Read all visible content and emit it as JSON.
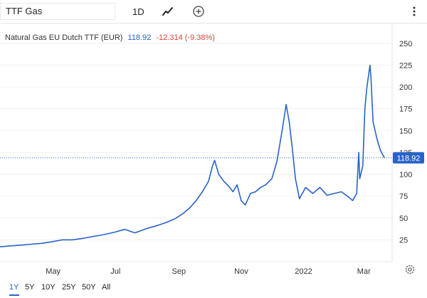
{
  "toolbar": {
    "symbol": "TTF Gas",
    "interval": "1D",
    "chart_style_icon": "line-chart-icon",
    "add_icon": "plus-circle-icon",
    "menu_icon": "vertical-dots-icon"
  },
  "legend": {
    "name": "Natural Gas EU Dutch TTF (EUR)",
    "price": "118.92",
    "change": "-12.314 (-9.38%)"
  },
  "price_badge": "118.92",
  "timeframes": [
    "1Y",
    "5Y",
    "10Y",
    "25Y",
    "50Y",
    "All"
  ],
  "active_timeframe": "1Y",
  "settings_icon": "gear-icon",
  "colors": {
    "line": "#2962c9",
    "accent": "#2962c9",
    "negative": "#e0403e"
  },
  "chart_data": {
    "type": "line",
    "title": "Natural Gas EU Dutch TTF (EUR)",
    "x_tick_labels": [
      "May",
      "Jul",
      "Sep",
      "Nov",
      "2022",
      "Mar"
    ],
    "y_ticks": [
      25,
      50,
      75,
      100,
      125,
      150,
      175,
      200,
      225,
      250
    ],
    "ylim": [
      0,
      270
    ],
    "grid": "horizontal",
    "last_value": 118.92,
    "series": [
      {
        "x": [
          "2021-03-10",
          "2021-03-20",
          "2021-04-01",
          "2021-04-10",
          "2021-04-20",
          "2021-05-01",
          "2021-05-10",
          "2021-05-20",
          "2021-06-01",
          "2021-06-10",
          "2021-06-20",
          "2021-07-01",
          "2021-07-10",
          "2021-07-20",
          "2021-08-01",
          "2021-08-10",
          "2021-08-20",
          "2021-08-28",
          "2021-09-05",
          "2021-09-12",
          "2021-09-18",
          "2021-09-24",
          "2021-09-30",
          "2021-10-04",
          "2021-10-06",
          "2021-10-10",
          "2021-10-15",
          "2021-10-20",
          "2021-10-24",
          "2021-10-28",
          "2021-11-01",
          "2021-11-05",
          "2021-11-10",
          "2021-11-15",
          "2021-11-20",
          "2021-11-25",
          "2021-12-01",
          "2021-12-06",
          "2021-12-11",
          "2021-12-15",
          "2021-12-18",
          "2021-12-21",
          "2021-12-24",
          "2021-12-28",
          "2022-01-03",
          "2022-01-10",
          "2022-01-17",
          "2022-01-24",
          "2022-01-31",
          "2022-02-07",
          "2022-02-14",
          "2022-02-18",
          "2022-02-22",
          "2022-02-24",
          "2022-02-25",
          "2022-02-28",
          "2022-03-02",
          "2022-03-04",
          "2022-03-07",
          "2022-03-08",
          "2022-03-10",
          "2022-03-14",
          "2022-03-17",
          "2022-03-21"
        ],
        "y": [
          17,
          18,
          19,
          20,
          21,
          23,
          25,
          25,
          27,
          29,
          31,
          34,
          37,
          33,
          38,
          41,
          45,
          49,
          55,
          62,
          70,
          80,
          92,
          110,
          116,
          100,
          92,
          86,
          80,
          88,
          70,
          65,
          78,
          80,
          85,
          88,
          95,
          115,
          150,
          180,
          160,
          130,
          95,
          72,
          85,
          78,
          85,
          76,
          78,
          80,
          74,
          70,
          78,
          125,
          95,
          110,
          175,
          200,
          225,
          210,
          160,
          140,
          128,
          118.92
        ]
      }
    ]
  }
}
